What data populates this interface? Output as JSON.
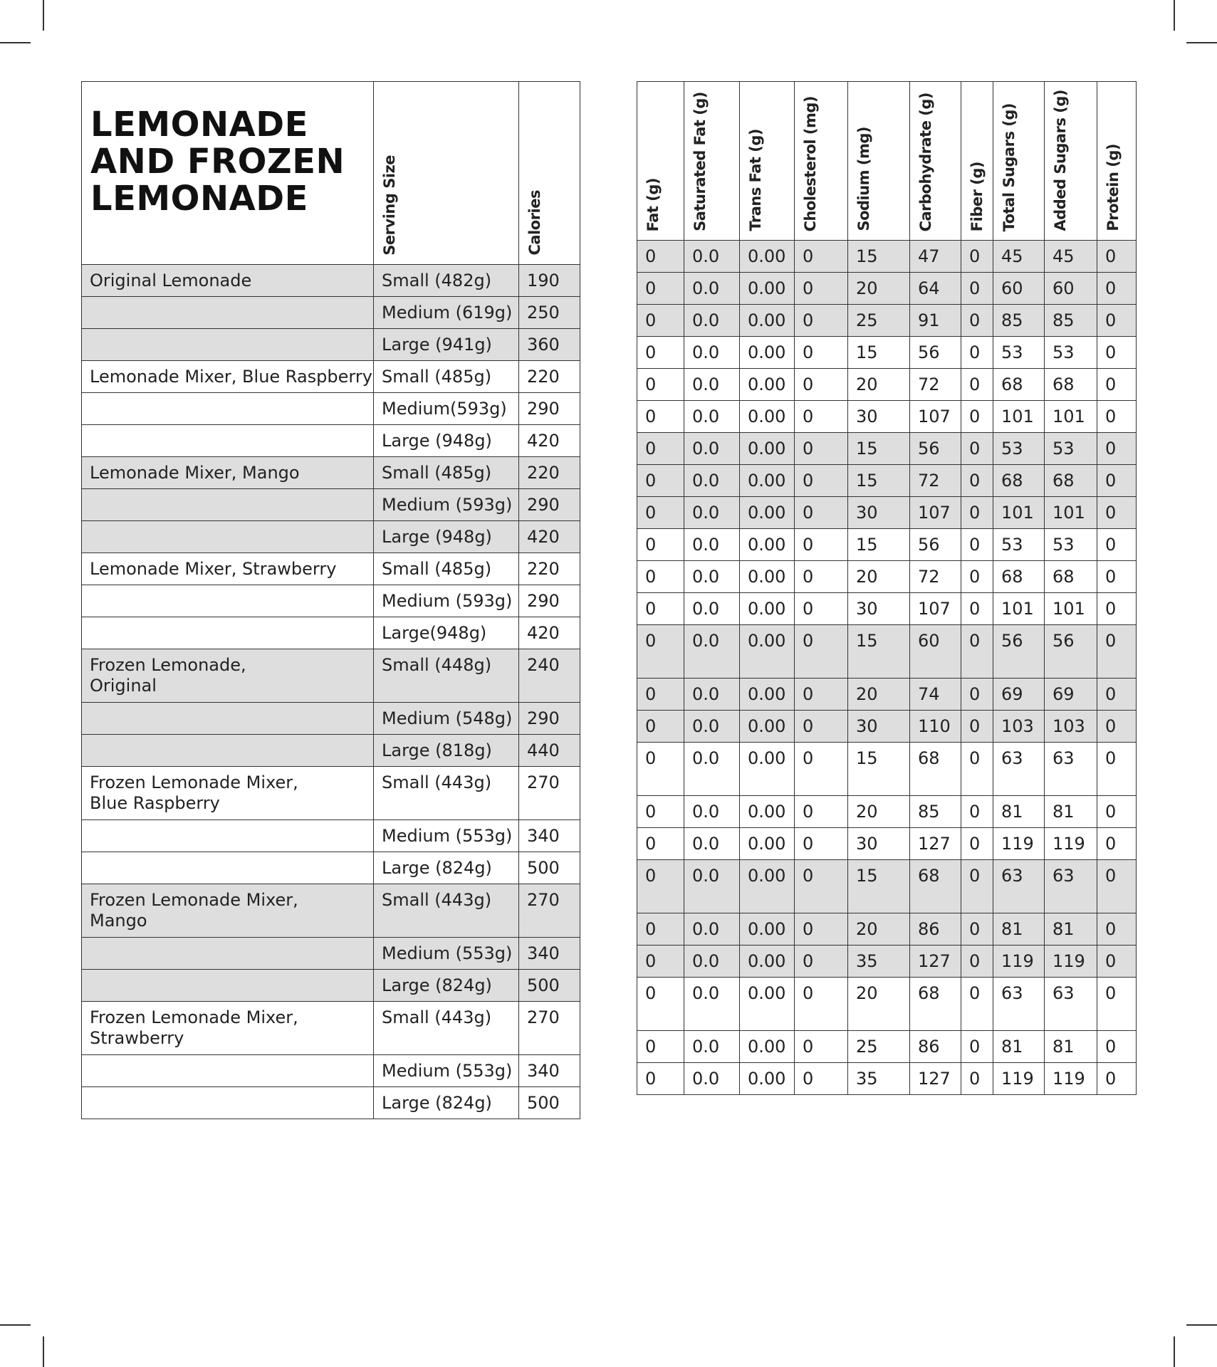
{
  "title": "LEMONADE AND FROZEN LEMONADE",
  "left_headers": [
    "Serving Size",
    "Calories"
  ],
  "right_headers": [
    "Fat (g)",
    "Saturated Fat (g)",
    "Trans Fat (g)",
    "Cholesterol (mg)",
    "Sodium (mg)",
    "Carbohydrate (g)",
    "Fiber (g)",
    "Total Sugars (g)",
    "Added Sugars (g)",
    "Protein (g)"
  ],
  "rows": [
    {
      "item": "Original Lemonade",
      "size": "Small (482g)",
      "cal": "190",
      "n": [
        "0",
        "0.0",
        "0.00",
        "0",
        "15",
        "47",
        "0",
        "45",
        "45",
        "0"
      ],
      "shade": true
    },
    {
      "item": "",
      "size": "Medium (619g)",
      "cal": "250",
      "n": [
        "0",
        "0.0",
        "0.00",
        "0",
        "20",
        "64",
        "0",
        "60",
        "60",
        "0"
      ],
      "shade": true
    },
    {
      "item": "",
      "size": "Large (941g)",
      "cal": "360",
      "n": [
        "0",
        "0.0",
        "0.00",
        "0",
        "25",
        "91",
        "0",
        "85",
        "85",
        "0"
      ],
      "shade": true
    },
    {
      "item": "Lemonade Mixer, Blue Raspberry",
      "size": "Small (485g)",
      "cal": "220",
      "n": [
        "0",
        "0.0",
        "0.00",
        "0",
        "15",
        "56",
        "0",
        "53",
        "53",
        "0"
      ],
      "shade": false
    },
    {
      "item": "",
      "size": "Medium(593g)",
      "cal": "290",
      "n": [
        "0",
        "0.0",
        "0.00",
        "0",
        "20",
        "72",
        "0",
        "68",
        "68",
        "0"
      ],
      "shade": false
    },
    {
      "item": "",
      "size": "Large (948g)",
      "cal": "420",
      "n": [
        "0",
        "0.0",
        "0.00",
        "0",
        "30",
        "107",
        "0",
        "101",
        "101",
        "0"
      ],
      "shade": false
    },
    {
      "item": "Lemonade Mixer, Mango",
      "size": "Small (485g)",
      "cal": "220",
      "n": [
        "0",
        "0.0",
        "0.00",
        "0",
        "15",
        "56",
        "0",
        "53",
        "53",
        "0"
      ],
      "shade": true
    },
    {
      "item": "",
      "size": "Medium (593g)",
      "cal": "290",
      "n": [
        "0",
        "0.0",
        "0.00",
        "0",
        "15",
        "72",
        "0",
        "68",
        "68",
        "0"
      ],
      "shade": true
    },
    {
      "item": "",
      "size": "Large (948g)",
      "cal": "420",
      "n": [
        "0",
        "0.0",
        "0.00",
        "0",
        "30",
        "107",
        "0",
        "101",
        "101",
        "0"
      ],
      "shade": true
    },
    {
      "item": "Lemonade Mixer, Strawberry",
      "size": "Small (485g)",
      "cal": "220",
      "n": [
        "0",
        "0.0",
        "0.00",
        "0",
        "15",
        "56",
        "0",
        "53",
        "53",
        "0"
      ],
      "shade": false
    },
    {
      "item": "",
      "size": "Medium (593g)",
      "cal": "290",
      "n": [
        "0",
        "0.0",
        "0.00",
        "0",
        "20",
        "72",
        "0",
        "68",
        "68",
        "0"
      ],
      "shade": false
    },
    {
      "item": "",
      "size": "Large(948g)",
      "cal": "420",
      "n": [
        "0",
        "0.0",
        "0.00",
        "0",
        "30",
        "107",
        "0",
        "101",
        "101",
        "0"
      ],
      "shade": false
    },
    {
      "item": "Frozen Lemonade,\nOriginal",
      "size": "Small (448g)",
      "cal": "240",
      "n": [
        "0",
        "0.0",
        "0.00",
        "0",
        "15",
        "60",
        "0",
        "56",
        "56",
        "0"
      ],
      "shade": true,
      "double": true
    },
    {
      "item": "",
      "size": "Medium (548g)",
      "cal": "290",
      "n": [
        "0",
        "0.0",
        "0.00",
        "0",
        "20",
        "74",
        "0",
        "69",
        "69",
        "0"
      ],
      "shade": true
    },
    {
      "item": "",
      "size": "Large (818g)",
      "cal": "440",
      "n": [
        "0",
        "0.0",
        "0.00",
        "0",
        "30",
        "110",
        "0",
        "103",
        "103",
        "0"
      ],
      "shade": true
    },
    {
      "item": "Frozen Lemonade Mixer,\nBlue Raspberry",
      "size": "Small (443g)",
      "cal": "270",
      "n": [
        "0",
        "0.0",
        "0.00",
        "0",
        "15",
        "68",
        "0",
        "63",
        "63",
        "0"
      ],
      "shade": false,
      "double": true
    },
    {
      "item": "",
      "size": "Medium (553g)",
      "cal": "340",
      "n": [
        "0",
        "0.0",
        "0.00",
        "0",
        "20",
        "85",
        "0",
        "81",
        "81",
        "0"
      ],
      "shade": false
    },
    {
      "item": "",
      "size": "Large (824g)",
      "cal": "500",
      "n": [
        "0",
        "0.0",
        "0.00",
        "0",
        "30",
        "127",
        "0",
        "119",
        "119",
        "0"
      ],
      "shade": false
    },
    {
      "item": "Frozen Lemonade Mixer,\nMango",
      "size": "Small (443g)",
      "cal": "270",
      "n": [
        "0",
        "0.0",
        "0.00",
        "0",
        "15",
        "68",
        "0",
        "63",
        "63",
        "0"
      ],
      "shade": true,
      "double": true
    },
    {
      "item": "",
      "size": "Medium (553g)",
      "cal": "340",
      "n": [
        "0",
        "0.0",
        "0.00",
        "0",
        "20",
        "86",
        "0",
        "81",
        "81",
        "0"
      ],
      "shade": true
    },
    {
      "item": "",
      "size": "Large (824g)",
      "cal": "500",
      "n": [
        "0",
        "0.0",
        "0.00",
        "0",
        "35",
        "127",
        "0",
        "119",
        "119",
        "0"
      ],
      "shade": true
    },
    {
      "item": "Frozen Lemonade Mixer,\nStrawberry",
      "size": " Small (443g)",
      "cal": "270",
      "n": [
        "0",
        "0.0",
        "0.00",
        "0",
        "20",
        "68",
        "0",
        "63",
        "63",
        "0"
      ],
      "shade": false,
      "double": true
    },
    {
      "item": "",
      "size": "Medium (553g)",
      "cal": "340",
      "n": [
        "0",
        "0.0",
        "0.00",
        "0",
        "25",
        "86",
        "0",
        "81",
        "81",
        "0"
      ],
      "shade": false
    },
    {
      "item": "",
      "size": "Large (824g)",
      "cal": "500",
      "n": [
        "0",
        "0.0",
        "0.00",
        "0",
        "35",
        "127",
        "0",
        "119",
        "119",
        "0"
      ],
      "shade": false
    }
  ]
}
